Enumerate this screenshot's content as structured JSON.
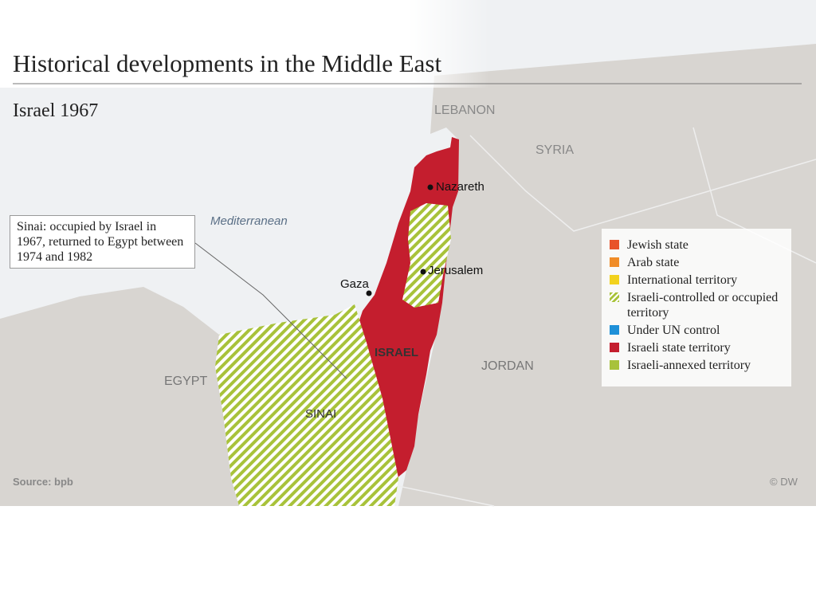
{
  "header": {
    "title": "Historical developments in the Middle East",
    "subtitle": "Israel 1967"
  },
  "places": {
    "lebanon": "LEBANON",
    "syria": "SYRIA",
    "sea": "Mediterranean",
    "egypt": "EGYPT",
    "sinai": "SINAI",
    "israel": "ISRAEL",
    "jordan": "JORDAN",
    "nazareth": "Nazareth",
    "jerusalem": "Jerusalem",
    "gaza": "Gaza"
  },
  "callout": "Sinai: occupied by Israel in 1967, returned to Egypt between 1974 and 1982",
  "legend": [
    {
      "label": "Jewish state",
      "color": "#e8532a"
    },
    {
      "label": "Arab state",
      "color": "#f08c28"
    },
    {
      "label": "International territory",
      "color": "#f2d21e"
    },
    {
      "label": "Israeli-controlled or occupied territory",
      "color": "#a8c23a",
      "pattern": "hatch"
    },
    {
      "label": "Under UN control",
      "color": "#1e90d8"
    },
    {
      "label": "Israeli state territory",
      "color": "#c41e2e"
    },
    {
      "label": "Israeli-annexed territory",
      "color": "#a8c23a"
    }
  ],
  "footer": {
    "source": "Source: bpb",
    "credit": "© DW"
  }
}
